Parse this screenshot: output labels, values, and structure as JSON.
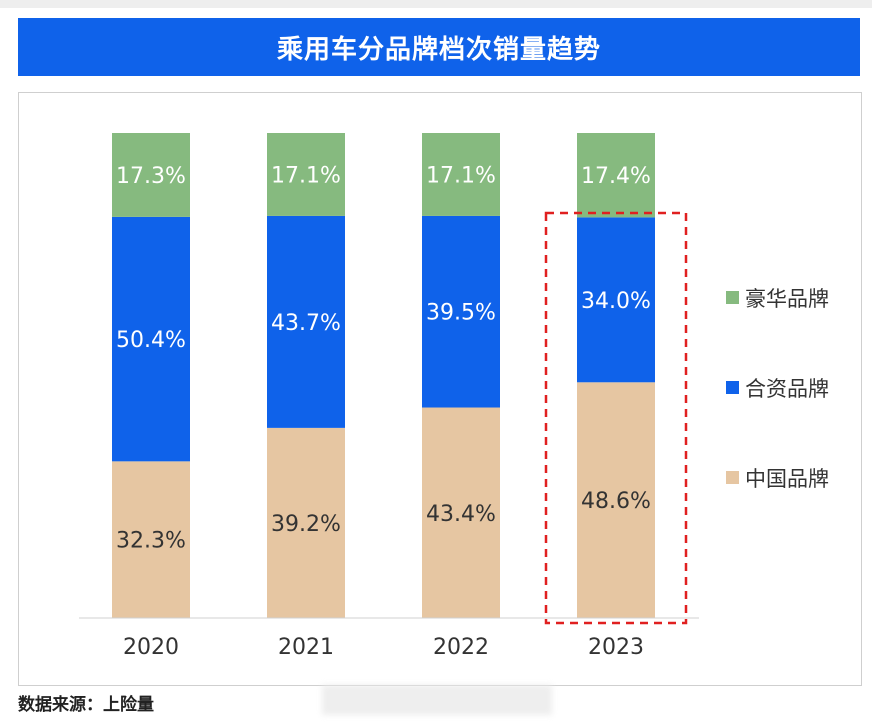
{
  "header": {
    "title": "乘用车分品牌档次销量趋势"
  },
  "footer": {
    "source": "数据来源：上险量"
  },
  "chart_data": {
    "type": "bar",
    "stacked": true,
    "categories": [
      "2020",
      "2021",
      "2022",
      "2023"
    ],
    "series": [
      {
        "name": "中国品牌",
        "values": [
          32.3,
          39.2,
          43.4,
          48.6
        ],
        "color": "#e6c6a2",
        "text_color": "#333333"
      },
      {
        "name": "合资品牌",
        "values": [
          50.4,
          43.7,
          39.5,
          34.0
        ],
        "color": "#0f62ea",
        "text_color": "#ffffff"
      },
      {
        "name": "豪华品牌",
        "values": [
          17.3,
          17.1,
          17.1,
          17.4
        ],
        "color": "#86ba7f",
        "text_color": "#ffffff"
      }
    ],
    "value_suffix": "%",
    "legend_order": [
      "豪华品牌",
      "合资品牌",
      "中国品牌"
    ],
    "legend_position": "right",
    "highlight_category": "2023",
    "highlight_color": "#e02020",
    "ylim": [
      0,
      100
    ]
  }
}
